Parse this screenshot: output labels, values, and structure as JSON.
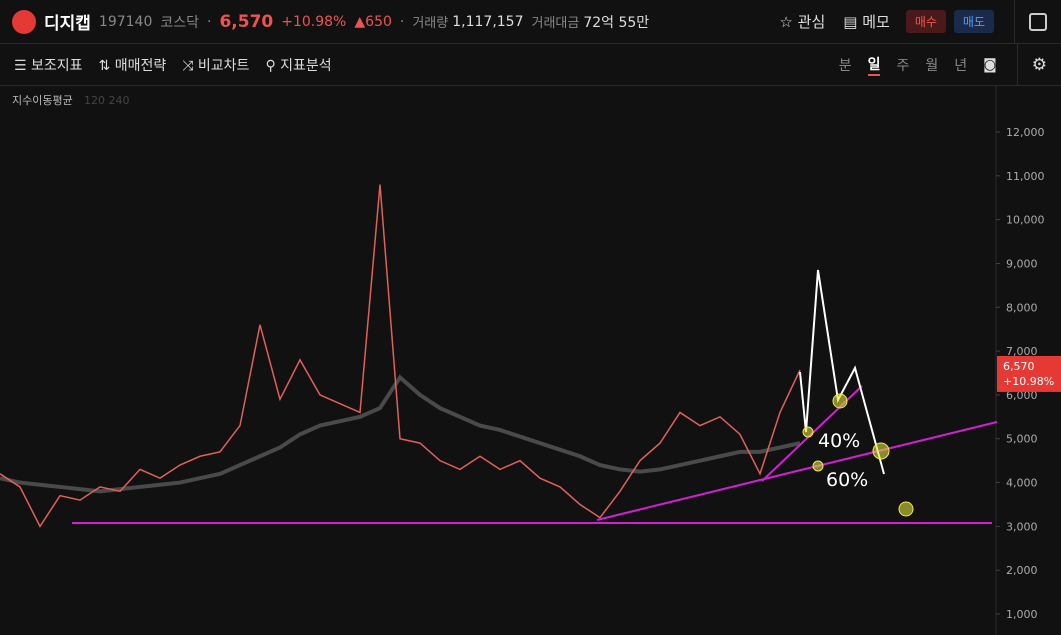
{
  "header": {
    "name": "디지캡",
    "code": "197140",
    "market": "코스닥",
    "price": "6,570",
    "change_pct": "+10.98%",
    "change": "650",
    "volume_label": "거래량",
    "volume": "1,117,157",
    "amount_label": "거래대금",
    "amount": "72억 55만",
    "buttons": [
      "관심",
      "메모",
      "매수",
      "매도"
    ]
  },
  "toolbar": {
    "tools": [
      "보조지표",
      "매매전략",
      "비교차트",
      "지표분석"
    ],
    "periods": [
      "분",
      "일",
      "주",
      "월",
      "년"
    ]
  },
  "chart_data": {
    "type": "line",
    "indicator_label": "지수이동평균",
    "indicator_params": "120 240",
    "series": [
      {
        "color": "#e0605a",
        "values": [
          4200,
          3900,
          3000,
          3700,
          3600,
          3900,
          3800,
          4300,
          4100,
          4400,
          4600,
          4700,
          5300,
          7600,
          5900,
          6800,
          6000,
          5800,
          5600,
          10800,
          5000,
          4900,
          4500,
          4300,
          4600,
          4300,
          4500,
          4100,
          3900,
          3500,
          3200,
          3800,
          4500,
          4900,
          5600,
          5300,
          5500,
          5100,
          4200,
          5600,
          6570
        ]
      },
      {
        "color": "#4a4a4a",
        "values": [
          4100,
          4000,
          3950,
          3900,
          3850,
          3800,
          3850,
          3900,
          3950,
          4000,
          4100,
          4200,
          4400,
          4600,
          4800,
          5100,
          5300,
          5400,
          5500,
          5700,
          6400,
          6000,
          5700,
          5500,
          5300,
          5200,
          5050,
          4900,
          4750,
          4600,
          4400,
          4300,
          4250,
          4300,
          4400,
          4500,
          4600,
          4700,
          4700,
          4800,
          4900
        ]
      }
    ],
    "ylim": [
      521,
      13050
    ],
    "yticks": [
      {
        "value": 1000,
        "label": "1,000"
      },
      {
        "value": 2000,
        "label": "2,000"
      },
      {
        "value": 3000,
        "label": "3,000"
      },
      {
        "value": 4000,
        "label": "4,000"
      },
      {
        "value": 5000,
        "label": "5,000"
      },
      {
        "value": 6000,
        "label": "6,000"
      },
      {
        "value": 7000,
        "label": "7,000"
      },
      {
        "value": 8000,
        "label": "8,000"
      },
      {
        "value": 9000,
        "label": "9,000"
      },
      {
        "value": 10000,
        "label": "10,000"
      },
      {
        "value": 11000,
        "label": "11,000"
      },
      {
        "value": 12000,
        "label": "12,000"
      }
    ],
    "price_tag": {
      "value": 6570,
      "label": "6,570",
      "change": "+10.98%"
    },
    "annotations": [
      "40%",
      "60%"
    ]
  }
}
